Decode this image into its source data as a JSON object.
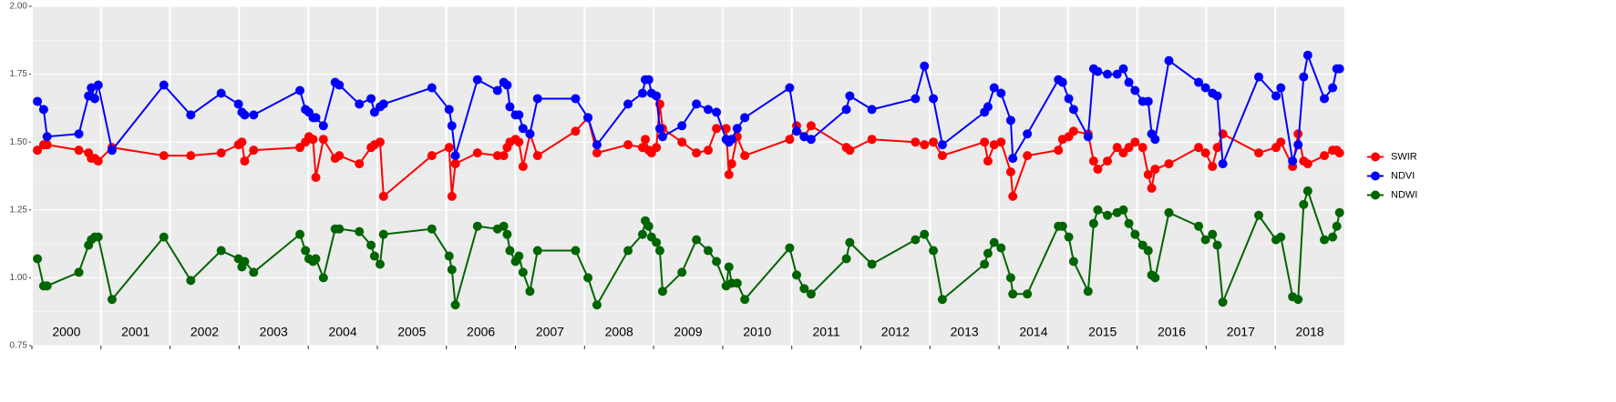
{
  "chart_data": {
    "type": "line",
    "x": [
      2000.08,
      2000.17,
      2000.22,
      2000.68,
      2000.82,
      2000.86,
      2000.91,
      2000.96,
      2001.16,
      2001.91,
      2002.3,
      2002.74,
      2002.99,
      2003.04,
      2003.08,
      2003.21,
      2003.88,
      2003.96,
      2004.01,
      2004.07,
      2004.11,
      2004.22,
      2004.39,
      2004.45,
      2004.74,
      2004.91,
      2004.96,
      2005.04,
      2005.09,
      2005.79,
      2006.04,
      2006.08,
      2006.13,
      2006.45,
      2006.74,
      2006.83,
      2006.88,
      2006.92,
      2007.0,
      2007.05,
      2007.11,
      2007.21,
      2007.32,
      2007.87,
      2008.05,
      2008.18,
      2008.63,
      2008.84,
      2008.88,
      2008.93,
      2008.97,
      2009.04,
      2009.09,
      2009.13,
      2009.41,
      2009.62,
      2009.79,
      2009.91,
      2010.05,
      2010.09,
      2010.13,
      2010.21,
      2010.32,
      2010.97,
      2011.07,
      2011.18,
      2011.28,
      2011.79,
      2011.84,
      2012.16,
      2012.79,
      2012.92,
      2013.05,
      2013.18,
      2013.79,
      2013.84,
      2013.93,
      2014.03,
      2014.17,
      2014.2,
      2014.41,
      2014.86,
      2014.92,
      2015.01,
      2015.08,
      2015.29,
      2015.37,
      2015.43,
      2015.57,
      2015.71,
      2015.8,
      2015.88,
      2015.97,
      2016.08,
      2016.16,
      2016.21,
      2016.26,
      2016.46,
      2016.89,
      2016.99,
      2017.09,
      2017.16,
      2017.24,
      2017.76,
      2018.01,
      2018.08,
      2018.25,
      2018.33,
      2018.41,
      2018.47,
      2018.71,
      2018.83,
      2018.89,
      2018.93
    ],
    "series": [
      {
        "name": "SWIR",
        "color": "#ff0000",
        "values": [
          1.47,
          1.49,
          1.49,
          1.47,
          1.46,
          1.44,
          1.44,
          1.43,
          1.48,
          1.45,
          1.45,
          1.46,
          1.49,
          1.5,
          1.43,
          1.47,
          1.48,
          1.5,
          1.52,
          1.51,
          1.37,
          1.51,
          1.44,
          1.45,
          1.42,
          1.48,
          1.49,
          1.5,
          1.3,
          1.45,
          1.48,
          1.3,
          1.42,
          1.46,
          1.45,
          1.45,
          1.48,
          1.5,
          1.51,
          1.5,
          1.41,
          1.53,
          1.45,
          1.54,
          1.59,
          1.46,
          1.49,
          1.48,
          1.51,
          1.47,
          1.46,
          1.48,
          1.64,
          1.55,
          1.5,
          1.46,
          1.47,
          1.55,
          1.55,
          1.38,
          1.42,
          1.52,
          1.45,
          1.51,
          1.56,
          1.52,
          1.56,
          1.48,
          1.47,
          1.51,
          1.5,
          1.49,
          1.5,
          1.45,
          1.5,
          1.43,
          1.49,
          1.5,
          1.39,
          1.3,
          1.45,
          1.47,
          1.51,
          1.52,
          1.54,
          1.53,
          1.43,
          1.4,
          1.43,
          1.48,
          1.46,
          1.48,
          1.5,
          1.48,
          1.38,
          1.33,
          1.4,
          1.42,
          1.48,
          1.46,
          1.41,
          1.48,
          1.53,
          1.46,
          1.48,
          1.5,
          1.41,
          1.53,
          1.43,
          1.42,
          1.45,
          1.47,
          1.47,
          1.46
        ]
      },
      {
        "name": "NDVI",
        "color": "#0000ff",
        "values": [
          1.65,
          1.62,
          1.52,
          1.53,
          1.67,
          1.7,
          1.66,
          1.71,
          1.47,
          1.71,
          1.6,
          1.68,
          1.64,
          1.61,
          1.6,
          1.6,
          1.69,
          1.62,
          1.61,
          1.59,
          1.59,
          1.56,
          1.72,
          1.71,
          1.64,
          1.66,
          1.61,
          1.63,
          1.64,
          1.7,
          1.62,
          1.56,
          1.45,
          1.73,
          1.69,
          1.72,
          1.71,
          1.63,
          1.6,
          1.6,
          1.55,
          1.53,
          1.66,
          1.66,
          1.59,
          1.49,
          1.64,
          1.68,
          1.73,
          1.73,
          1.68,
          1.67,
          1.55,
          1.52,
          1.56,
          1.64,
          1.62,
          1.61,
          1.51,
          1.5,
          1.51,
          1.55,
          1.59,
          1.7,
          1.54,
          1.52,
          1.51,
          1.62,
          1.67,
          1.62,
          1.66,
          1.78,
          1.66,
          1.49,
          1.61,
          1.63,
          1.7,
          1.68,
          1.58,
          1.44,
          1.53,
          1.73,
          1.72,
          1.66,
          1.62,
          1.52,
          1.77,
          1.76,
          1.75,
          1.75,
          1.77,
          1.72,
          1.69,
          1.65,
          1.65,
          1.53,
          1.51,
          1.8,
          1.72,
          1.7,
          1.68,
          1.67,
          1.42,
          1.74,
          1.67,
          1.7,
          1.43,
          1.49,
          1.74,
          1.82,
          1.66,
          1.7,
          1.77,
          1.77
        ]
      },
      {
        "name": "NDWI",
        "color": "#006400",
        "values": [
          1.07,
          0.97,
          0.97,
          1.02,
          1.12,
          1.14,
          1.15,
          1.15,
          0.92,
          1.15,
          0.99,
          1.1,
          1.07,
          1.04,
          1.06,
          1.02,
          1.16,
          1.1,
          1.07,
          1.06,
          1.07,
          1.0,
          1.18,
          1.18,
          1.17,
          1.12,
          1.08,
          1.05,
          1.16,
          1.18,
          1.08,
          1.03,
          0.9,
          1.19,
          1.18,
          1.19,
          1.16,
          1.1,
          1.06,
          1.08,
          1.02,
          0.95,
          1.1,
          1.1,
          1.0,
          0.9,
          1.1,
          1.16,
          1.21,
          1.19,
          1.15,
          1.13,
          1.1,
          0.95,
          1.02,
          1.14,
          1.1,
          1.06,
          0.97,
          1.04,
          0.98,
          0.98,
          0.92,
          1.11,
          1.01,
          0.96,
          0.94,
          1.07,
          1.13,
          1.05,
          1.14,
          1.16,
          1.1,
          0.92,
          1.05,
          1.09,
          1.13,
          1.11,
          1.0,
          0.94,
          0.94,
          1.19,
          1.19,
          1.15,
          1.06,
          0.95,
          1.2,
          1.25,
          1.23,
          1.24,
          1.25,
          1.2,
          1.16,
          1.12,
          1.1,
          1.01,
          1.0,
          1.24,
          1.19,
          1.14,
          1.16,
          1.12,
          0.91,
          1.23,
          1.14,
          1.15,
          0.93,
          0.92,
          1.27,
          1.32,
          1.14,
          1.15,
          1.19,
          1.24
        ]
      }
    ],
    "xlim": [
      2000,
      2019
    ],
    "xticks": [
      2000,
      2001,
      2002,
      2003,
      2004,
      2005,
      2006,
      2007,
      2008,
      2009,
      2010,
      2011,
      2012,
      2013,
      2014,
      2015,
      2016,
      2017,
      2018
    ],
    "ylim": [
      0.75,
      2.0
    ],
    "yticks": [
      {
        "value": 0.75,
        "label": "0.75"
      },
      {
        "value": 1.0,
        "label": "1.00"
      },
      {
        "value": 1.25,
        "label": "1.25"
      },
      {
        "value": 1.5,
        "label": "1.50"
      },
      {
        "value": 1.75,
        "label": "1.75"
      },
      {
        "value": 2.0,
        "label": "2.00"
      }
    ],
    "grid": true,
    "legend": "right"
  }
}
